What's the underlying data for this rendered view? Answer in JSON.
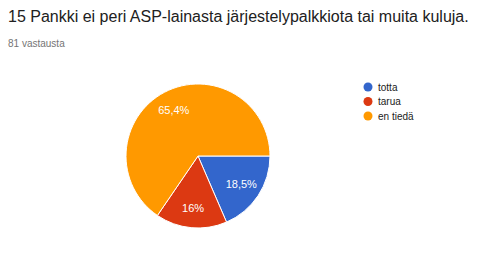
{
  "chart_data": {
    "type": "pie",
    "title": "15 Pankki ei peri ASP-lainasta järjestelypalkkiota tai muita kuluja.",
    "subtitle": "81 vastausta",
    "categories": [
      "totta",
      "tarua",
      "en tiedä"
    ],
    "values": [
      18.5,
      16,
      65.4
    ],
    "value_labels": [
      "18,5%",
      "16%",
      "65,4%"
    ],
    "colors": [
      "#3366cc",
      "#dc3912",
      "#ff9900"
    ],
    "legend": "right",
    "data_labels": true
  }
}
